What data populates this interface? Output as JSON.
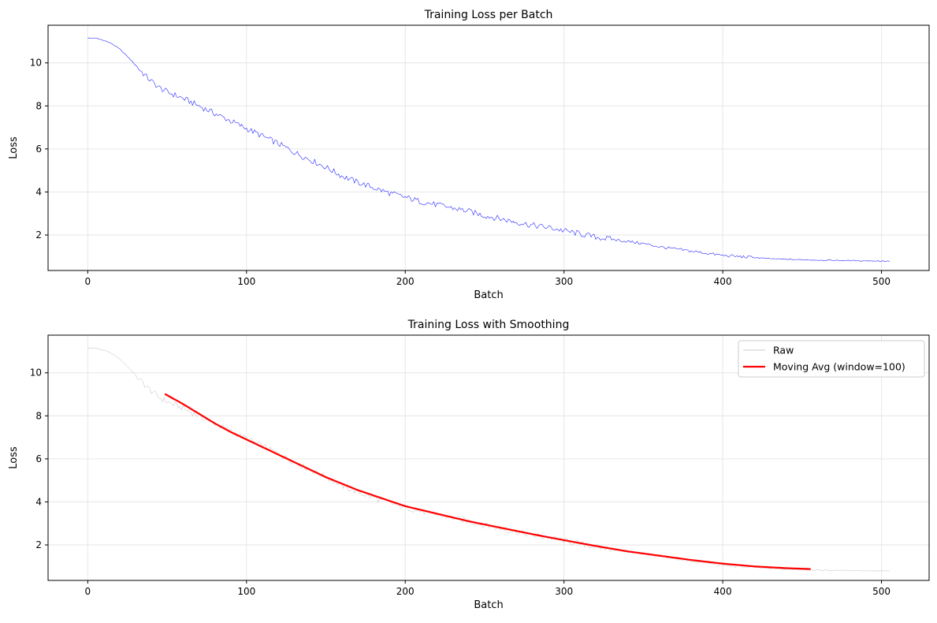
{
  "chart_data": [
    {
      "type": "line",
      "title": "Training Loss per Batch",
      "xlabel": "Batch",
      "ylabel": "Loss",
      "xlim": [
        -25,
        530
      ],
      "ylim": [
        0.35,
        11.75
      ],
      "xticks": [
        0,
        100,
        200,
        300,
        400,
        500
      ],
      "yticks": [
        2,
        4,
        6,
        8,
        10
      ],
      "xtick_labels": [
        "0",
        "100",
        "200",
        "300",
        "400",
        "500"
      ],
      "ytick_labels": [
        "2",
        "4",
        "6",
        "8",
        "10"
      ],
      "grid": true,
      "series": [
        {
          "color": "#0000ff",
          "x": [
            0,
            5,
            10,
            15,
            20,
            25,
            30,
            35,
            40,
            45,
            50,
            60,
            70,
            80,
            90,
            100,
            110,
            120,
            130,
            140,
            150,
            160,
            170,
            180,
            190,
            200,
            210,
            220,
            230,
            240,
            250,
            260,
            270,
            280,
            290,
            300,
            310,
            320,
            330,
            340,
            350,
            360,
            370,
            380,
            390,
            400,
            410,
            420,
            430,
            440,
            450,
            460,
            470,
            480,
            490,
            500,
            505
          ],
          "y": [
            11.15,
            11.15,
            11.05,
            10.9,
            10.65,
            10.3,
            9.9,
            9.5,
            9.15,
            8.85,
            8.65,
            8.35,
            8.0,
            7.65,
            7.3,
            6.95,
            6.6,
            6.25,
            5.85,
            5.5,
            5.15,
            4.75,
            4.45,
            4.2,
            3.95,
            3.75,
            3.55,
            3.4,
            3.25,
            3.1,
            2.9,
            2.75,
            2.6,
            2.45,
            2.35,
            2.2,
            2.05,
            1.9,
            1.8,
            1.7,
            1.6,
            1.45,
            1.35,
            1.25,
            1.15,
            1.05,
            1.0,
            0.95,
            0.9,
            0.87,
            0.85,
            0.83,
            0.82,
            0.81,
            0.8,
            0.79,
            0.78
          ]
        }
      ]
    },
    {
      "type": "line",
      "title": "Training Loss with Smoothing",
      "xlabel": "Batch",
      "ylabel": "Loss",
      "xlim": [
        -25,
        530
      ],
      "ylim": [
        0.35,
        11.75
      ],
      "xticks": [
        0,
        100,
        200,
        300,
        400,
        500
      ],
      "yticks": [
        2,
        4,
        6,
        8,
        10
      ],
      "xtick_labels": [
        "0",
        "100",
        "200",
        "300",
        "400",
        "500"
      ],
      "ytick_labels": [
        "2",
        "4",
        "6",
        "8",
        "10"
      ],
      "grid": true,
      "legend_position": "upper right",
      "series": [
        {
          "name": "Raw",
          "color": "#bbbbbb",
          "x": [
            0,
            5,
            10,
            15,
            20,
            25,
            30,
            35,
            40,
            45,
            50,
            60,
            70,
            80,
            90,
            100,
            110,
            120,
            130,
            140,
            150,
            160,
            170,
            180,
            190,
            200,
            210,
            220,
            230,
            240,
            250,
            260,
            270,
            280,
            290,
            300,
            310,
            320,
            330,
            340,
            350,
            360,
            370,
            380,
            390,
            400,
            410,
            420,
            430,
            440,
            450,
            460,
            470,
            480,
            490,
            500,
            505
          ],
          "y": [
            11.15,
            11.15,
            11.05,
            10.9,
            10.65,
            10.3,
            9.9,
            9.5,
            9.15,
            8.85,
            8.65,
            8.35,
            8.0,
            7.65,
            7.3,
            6.95,
            6.6,
            6.25,
            5.85,
            5.5,
            5.15,
            4.75,
            4.45,
            4.2,
            3.95,
            3.75,
            3.55,
            3.4,
            3.25,
            3.1,
            2.9,
            2.75,
            2.6,
            2.45,
            2.35,
            2.2,
            2.05,
            1.9,
            1.8,
            1.7,
            1.6,
            1.45,
            1.35,
            1.25,
            1.15,
            1.05,
            1.0,
            0.95,
            0.9,
            0.87,
            0.85,
            0.83,
            0.82,
            0.81,
            0.8,
            0.79,
            0.78
          ]
        },
        {
          "name": "Moving Avg (window=100)",
          "color": "#ff0000",
          "x": [
            49,
            60,
            70,
            80,
            90,
            100,
            110,
            120,
            130,
            140,
            150,
            160,
            170,
            180,
            190,
            200,
            220,
            240,
            260,
            280,
            300,
            320,
            340,
            360,
            380,
            400,
            420,
            440,
            455
          ],
          "y": [
            9.0,
            8.55,
            8.1,
            7.65,
            7.25,
            6.9,
            6.55,
            6.2,
            5.85,
            5.5,
            5.15,
            4.85,
            4.55,
            4.3,
            4.05,
            3.8,
            3.45,
            3.1,
            2.8,
            2.5,
            2.22,
            1.95,
            1.7,
            1.5,
            1.3,
            1.13,
            1.0,
            0.92,
            0.88
          ]
        }
      ]
    }
  ]
}
